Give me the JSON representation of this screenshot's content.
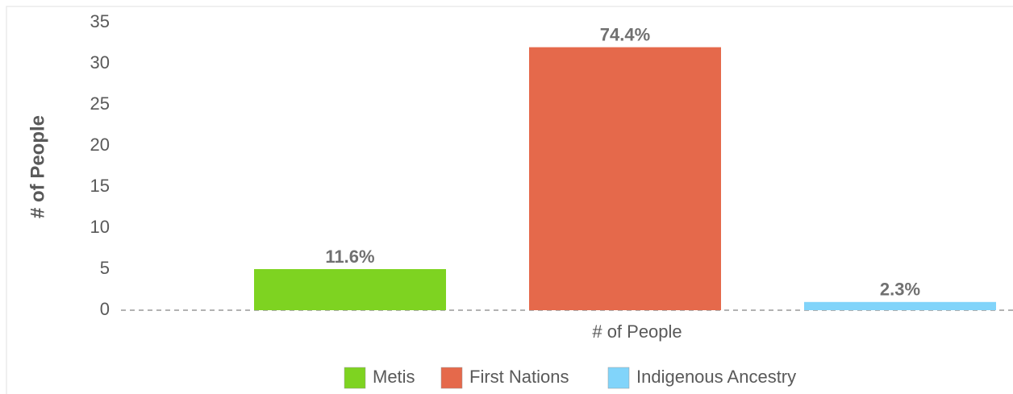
{
  "chart_data": {
    "type": "bar",
    "y_axis_label": "# of People",
    "categories": [
      "# of People"
    ],
    "series": [
      {
        "name": "Metis",
        "color": "#7ed321",
        "values": [
          5
        ],
        "data_labels": [
          "11.6%"
        ]
      },
      {
        "name": "First Nations",
        "color": "#e5694b",
        "values": [
          32
        ],
        "data_labels": [
          "74.4%"
        ]
      },
      {
        "name": "Indigenous Ancestry",
        "color": "#81d4fa",
        "values": [
          1
        ],
        "data_labels": [
          "2.3%"
        ]
      }
    ],
    "ylim": [
      0,
      35
    ],
    "yticks": [
      0,
      5,
      10,
      15,
      20,
      25,
      30,
      35
    ],
    "grid": false,
    "legend": "bottom"
  }
}
